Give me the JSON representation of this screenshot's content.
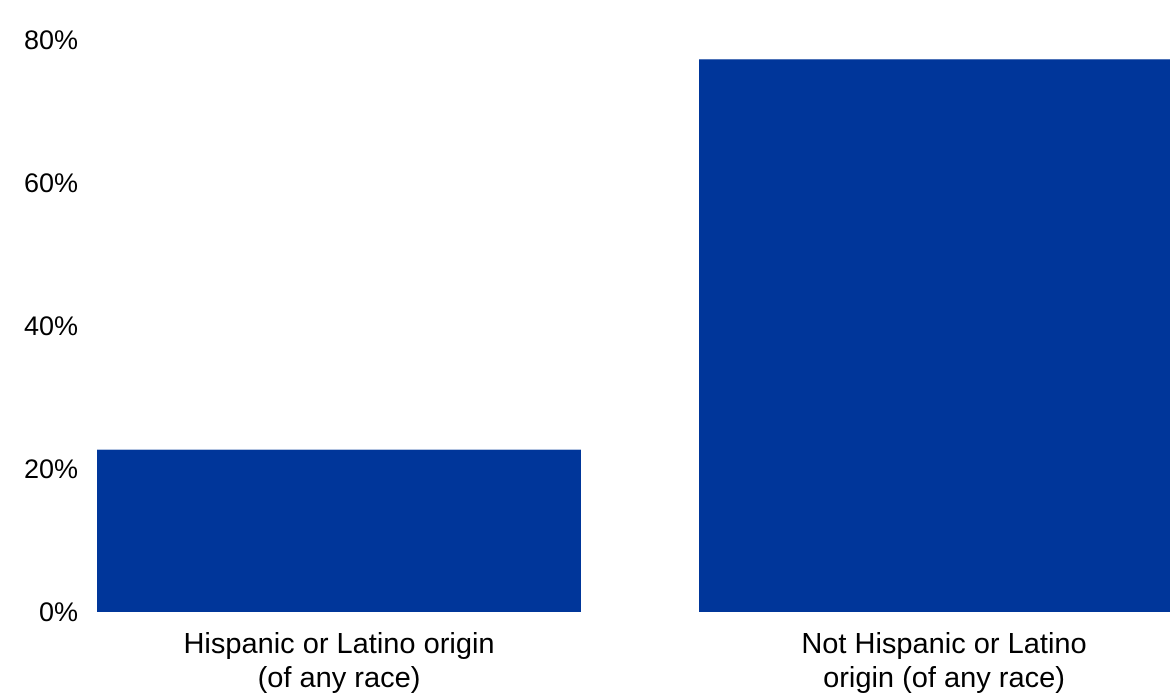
{
  "chart_data": {
    "type": "bar",
    "categories": [
      [
        "Hispanic or Latino origin",
        "(of any race)"
      ],
      [
        "Not Hispanic or Latino",
        "origin (of any race)"
      ]
    ],
    "values": [
      22.7,
      77.3
    ],
    "ylim": [
      0,
      80
    ],
    "yticks": [
      0,
      20,
      40,
      60,
      80
    ],
    "ytick_labels": [
      "0%",
      "20%",
      "40%",
      "60%",
      "80%"
    ],
    "grid": false,
    "legend": "none",
    "bar_color": "#00369a"
  }
}
